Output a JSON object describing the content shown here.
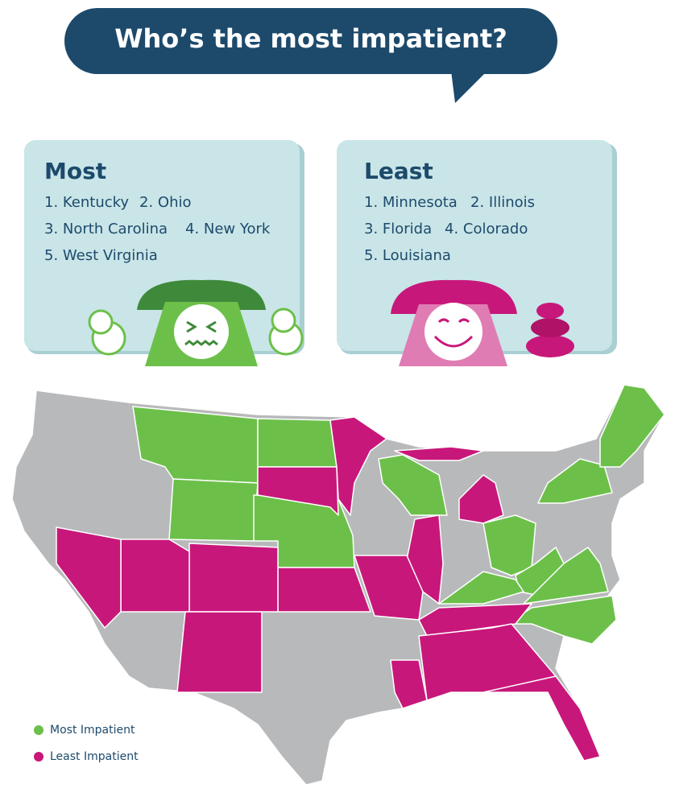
{
  "title": "Who’s the most impatient?",
  "most": {
    "heading": "Most",
    "items": [
      "1. Kentucky",
      "2. Ohio",
      "3. North Carolina",
      "4. New York",
      "5. West Virginia"
    ]
  },
  "least": {
    "heading": "Least",
    "items": [
      "1. Minnesota",
      "2. Illinois",
      "3. Florida",
      "4. Colorado",
      "5. Louisiana"
    ]
  },
  "legend": [
    {
      "label": "Most Impatient",
      "color": "#6cc04a"
    },
    {
      "label": "Least Impatient",
      "color": "#c8177a"
    }
  ]
}
